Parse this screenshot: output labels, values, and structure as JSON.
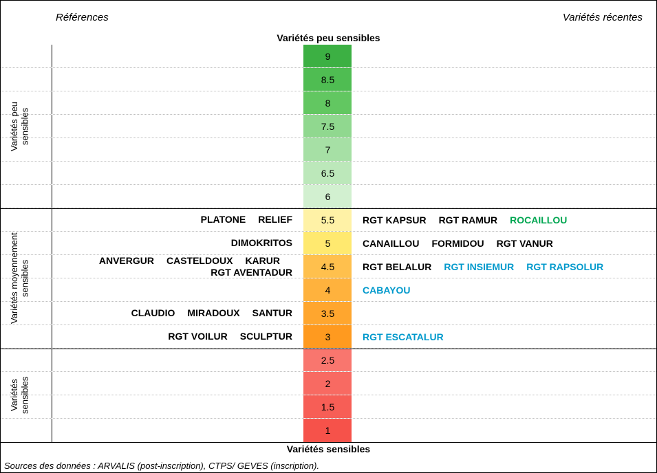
{
  "header": {
    "left": "Références",
    "right": "Variétés récentes"
  },
  "topLabel": "Variétés peu sensibles",
  "bottomLabel": "Variétés sensibles",
  "source": "Sources des données : ARVALIS (post-inscription), CTPS/ GEVES (inscription).",
  "colors": {
    "default": "#000000",
    "green": "#00a651",
    "blue": "#0099cc"
  },
  "sectionLabels": [
    {
      "text": "Variétés peu\nsensibles",
      "rowStart": 0,
      "rowEnd": 7
    },
    {
      "text": "Variétés moyennement\nsensibles",
      "rowStart": 7,
      "rowEnd": 13
    },
    {
      "text": "Variétés\nsensibles",
      "rowStart": 13,
      "rowEnd": 17
    }
  ],
  "sectionBreaks": [
    7,
    13
  ],
  "rows": [
    {
      "scale": "9",
      "bg": "#3cb043",
      "refs": [],
      "recs": []
    },
    {
      "scale": "8.5",
      "bg": "#4fbd52",
      "refs": [],
      "recs": []
    },
    {
      "scale": "8",
      "bg": "#62c761",
      "refs": [],
      "recs": []
    },
    {
      "scale": "7.5",
      "bg": "#90d88f",
      "refs": [],
      "recs": []
    },
    {
      "scale": "7",
      "bg": "#a6e0a5",
      "refs": [],
      "recs": []
    },
    {
      "scale": "6.5",
      "bg": "#bce8ba",
      "refs": [],
      "recs": []
    },
    {
      "scale": "6",
      "bg": "#d2f0d0",
      "refs": [],
      "recs": []
    },
    {
      "scale": "5.5",
      "bg": "#fff2a6",
      "refs": [
        {
          "t": "PLATONE"
        },
        {
          "t": "RELIEF"
        }
      ],
      "recs": [
        {
          "t": "RGT KAPSUR"
        },
        {
          "t": "RGT RAMUR"
        },
        {
          "t": "ROCAILLOU",
          "c": "green"
        }
      ]
    },
    {
      "scale": "5",
      "bg": "#ffe96f",
      "refs": [
        {
          "t": "DIMOKRITOS"
        }
      ],
      "recs": [
        {
          "t": "CANAILLOU"
        },
        {
          "t": "FORMIDOU"
        },
        {
          "t": "RGT VANUR"
        }
      ]
    },
    {
      "scale": "4.5",
      "bg": "#ffc04d",
      "refs": [
        {
          "t": "ANVERGUR"
        },
        {
          "t": "CASTELDOUX"
        },
        {
          "t": "KARUR"
        },
        {
          "t": "RGT AVENTADUR"
        }
      ],
      "recs": [
        {
          "t": "RGT BELALUR"
        },
        {
          "t": "RGT INSIEMUR",
          "c": "blue"
        },
        {
          "t": "RGT RAPSOLUR",
          "c": "blue"
        }
      ],
      "twoLine": true
    },
    {
      "scale": "4",
      "bg": "#ffb23d",
      "refs": [],
      "recs": [
        {
          "t": "CABAYOU",
          "c": "blue"
        }
      ]
    },
    {
      "scale": "3.5",
      "bg": "#ffa62e",
      "refs": [
        {
          "t": "CLAUDIO"
        },
        {
          "t": "MIRADOUX"
        },
        {
          "t": "SANTUR"
        }
      ],
      "recs": []
    },
    {
      "scale": "3",
      "bg": "#ff9a1f",
      "refs": [
        {
          "t": "RGT VOILUR"
        },
        {
          "t": "SCULPTUR"
        }
      ],
      "recs": [
        {
          "t": "RGT ESCATALUR",
          "c": "blue"
        }
      ]
    },
    {
      "scale": "2.5",
      "bg": "#f9766e",
      "refs": [],
      "recs": []
    },
    {
      "scale": "2",
      "bg": "#f86a62",
      "refs": [],
      "recs": []
    },
    {
      "scale": "1.5",
      "bg": "#f75e56",
      "refs": [],
      "recs": []
    },
    {
      "scale": "1",
      "bg": "#f6524a",
      "refs": [],
      "recs": []
    }
  ]
}
